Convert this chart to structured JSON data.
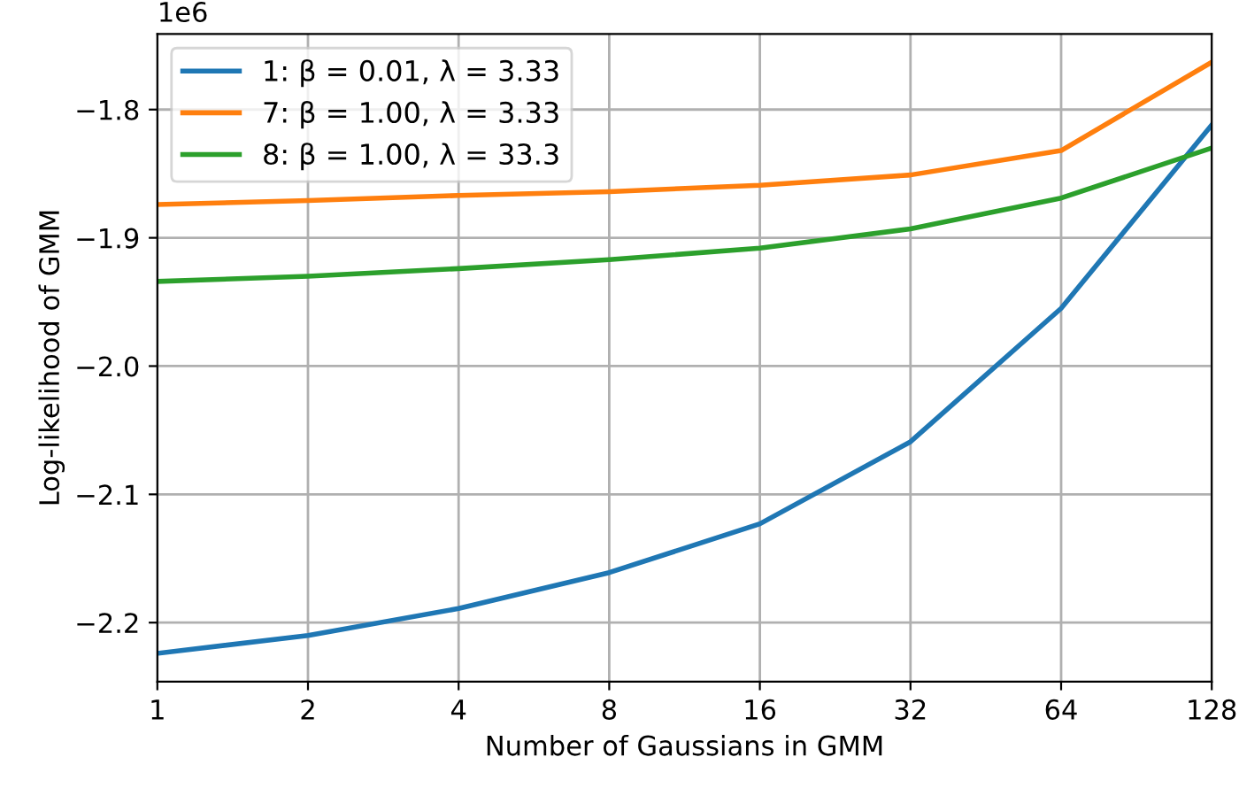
{
  "chart_data": {
    "type": "line",
    "xlabel": "Number of Gaussians in GMM",
    "ylabel": "Log-likelihood of GMM",
    "x": [
      1,
      2,
      4,
      8,
      16,
      32,
      64,
      128
    ],
    "series": [
      {
        "name": "1: β = 0.01, λ = 3.33",
        "color": "#1f77b4",
        "values": [
          -2.224,
          -2.21,
          -2.189,
          -2.161,
          -2.123,
          -2.059,
          -1.955,
          -1.812
        ]
      },
      {
        "name": "7: β = 1.00, λ = 3.33",
        "color": "#ff7f0e",
        "values": [
          -1.874,
          -1.871,
          -1.867,
          -1.864,
          -1.859,
          -1.851,
          -1.832,
          -1.763
        ]
      },
      {
        "name": "8: β = 1.00, λ = 33.3",
        "color": "#2ca02c",
        "values": [
          -1.934,
          -1.93,
          -1.924,
          -1.917,
          -1.908,
          -1.893,
          -1.869,
          -1.83
        ]
      }
    ],
    "log": "x",
    "xlim": [
      1,
      128
    ],
    "xticks": [
      1,
      2,
      4,
      8,
      16,
      32,
      64,
      128
    ],
    "ylim": [
      -2.246,
      -1.741
    ],
    "yticks": [
      -2.2,
      -2.1,
      {
        "value": -2,
        "label": "−2.0"
      },
      -1.9,
      -1.8
    ],
    "annotations": [
      "1e6"
    ],
    "grid": true,
    "legend": "top left",
    "marker": "none",
    "line_style": "solid"
  }
}
